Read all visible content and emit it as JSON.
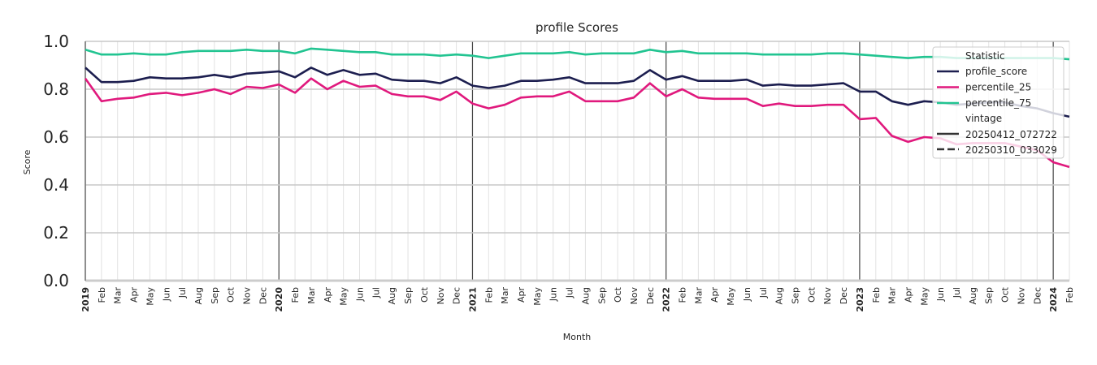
{
  "chart_data": {
    "type": "line",
    "title": "profile Scores",
    "xlabel": "Month",
    "ylabel": "Score",
    "ylim": [
      0,
      1
    ],
    "yticks": [
      "0.0",
      "0.2",
      "0.4",
      "0.6",
      "0.8",
      "1.0"
    ],
    "xticks": [
      "2019",
      "Feb",
      "Mar",
      "Apr",
      "May",
      "Jun",
      "Jul",
      "Aug",
      "Sep",
      "Oct",
      "Nov",
      "Dec",
      "2020",
      "Feb",
      "Mar",
      "Apr",
      "May",
      "Jun",
      "Jul",
      "Aug",
      "Sep",
      "Oct",
      "Nov",
      "Dec",
      "2021",
      "Feb",
      "Mar",
      "Apr",
      "May",
      "Jun",
      "Jul",
      "Aug",
      "Sep",
      "Oct",
      "Nov",
      "Dec",
      "2022",
      "Feb",
      "Mar",
      "Apr",
      "May",
      "Jun",
      "Jul",
      "Aug",
      "Sep",
      "Oct",
      "Nov",
      "Dec",
      "2023",
      "Feb",
      "Mar",
      "Apr",
      "May",
      "Jun",
      "Jul",
      "Aug",
      "Sep",
      "Oct",
      "Nov",
      "Dec",
      "2024",
      "Feb"
    ],
    "grid": true,
    "legend": {
      "placement": "top-right",
      "title_statistic": "Statistic",
      "title_vintage": "vintage",
      "vintages": [
        {
          "label": "20250412_072722",
          "style": "solid"
        },
        {
          "label": "20250310_033029",
          "style": "dashed"
        }
      ]
    },
    "series": [
      {
        "name": "profile_score",
        "color": "#1c1e4f",
        "values": [
          0.89,
          0.83,
          0.83,
          0.835,
          0.85,
          0.845,
          0.845,
          0.85,
          0.86,
          0.85,
          0.865,
          0.87,
          0.875,
          0.85,
          0.89,
          0.86,
          0.88,
          0.86,
          0.865,
          0.84,
          0.835,
          0.835,
          0.825,
          0.85,
          0.815,
          0.805,
          0.815,
          0.835,
          0.835,
          0.84,
          0.85,
          0.825,
          0.825,
          0.825,
          0.835,
          0.88,
          0.84,
          0.855,
          0.835,
          0.835,
          0.835,
          0.84,
          0.815,
          0.82,
          0.815,
          0.815,
          0.82,
          0.825,
          0.79,
          0.79,
          0.75,
          0.735,
          0.75,
          0.745,
          0.735,
          0.74,
          0.745,
          0.745,
          0.73,
          0.72,
          0.7,
          0.685
        ]
      },
      {
        "name": "percentile_25",
        "color": "#e0197d",
        "values": [
          0.845,
          0.75,
          0.76,
          0.765,
          0.78,
          0.785,
          0.775,
          0.785,
          0.8,
          0.78,
          0.81,
          0.805,
          0.82,
          0.785,
          0.845,
          0.8,
          0.835,
          0.81,
          0.815,
          0.78,
          0.77,
          0.77,
          0.755,
          0.79,
          0.74,
          0.72,
          0.735,
          0.765,
          0.77,
          0.77,
          0.79,
          0.75,
          0.75,
          0.75,
          0.765,
          0.825,
          0.77,
          0.8,
          0.765,
          0.76,
          0.76,
          0.76,
          0.73,
          0.74,
          0.73,
          0.73,
          0.735,
          0.735,
          0.675,
          0.68,
          0.605,
          0.58,
          0.6,
          0.595,
          0.57,
          0.575,
          0.575,
          0.575,
          0.56,
          0.545,
          0.495,
          0.475
        ]
      },
      {
        "name": "percentile_75",
        "color": "#22c491",
        "values": [
          0.965,
          0.945,
          0.945,
          0.95,
          0.945,
          0.945,
          0.955,
          0.96,
          0.96,
          0.96,
          0.965,
          0.96,
          0.96,
          0.95,
          0.97,
          0.965,
          0.96,
          0.955,
          0.955,
          0.945,
          0.945,
          0.945,
          0.94,
          0.945,
          0.94,
          0.93,
          0.94,
          0.95,
          0.95,
          0.95,
          0.955,
          0.945,
          0.95,
          0.95,
          0.95,
          0.965,
          0.955,
          0.96,
          0.95,
          0.95,
          0.95,
          0.95,
          0.945,
          0.945,
          0.945,
          0.945,
          0.95,
          0.95,
          0.945,
          0.94,
          0.935,
          0.93,
          0.935,
          0.935,
          0.93,
          0.93,
          0.93,
          0.93,
          0.93,
          0.93,
          0.93,
          0.925
        ]
      }
    ]
  }
}
